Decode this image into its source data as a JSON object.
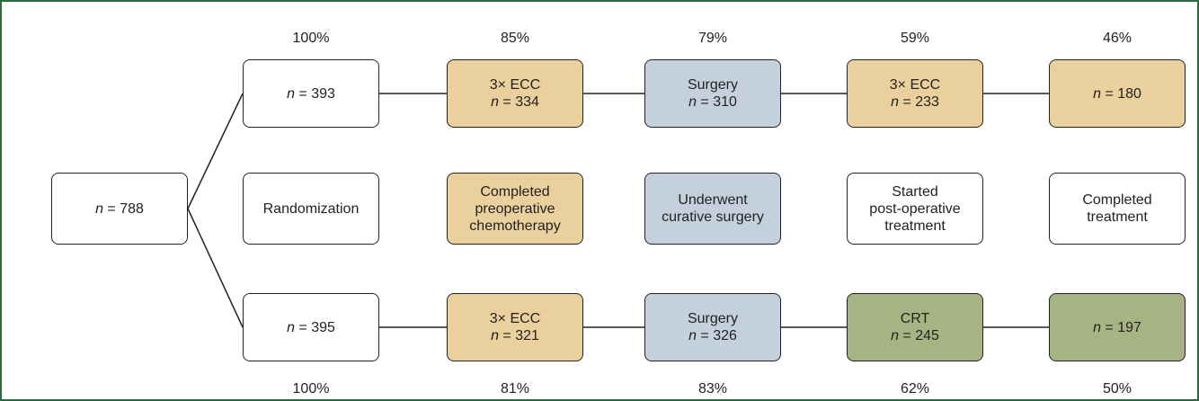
{
  "start": {
    "count": "n = 788"
  },
  "stages": [
    [
      "Randomization"
    ],
    [
      "Completed",
      "preoperative",
      "chemotherapy"
    ],
    [
      "Underwent",
      "curative surgery"
    ],
    [
      "Started",
      "post-operative",
      "treatment"
    ],
    [
      "Completed",
      "treatment"
    ]
  ],
  "arms": [
    {
      "percents": [
        "100%",
        "85%",
        "79%",
        "59%",
        "46%"
      ],
      "boxes": [
        {
          "count": "n = 393"
        },
        {
          "treatment": "3× ECC",
          "count": "n = 334"
        },
        {
          "treatment": "Surgery",
          "count": "n = 310"
        },
        {
          "treatment": "3× ECC",
          "count": "n = 233"
        },
        {
          "count": "n = 180"
        }
      ]
    },
    {
      "percents": [
        "100%",
        "81%",
        "83%",
        "62%",
        "50%"
      ],
      "boxes": [
        {
          "count": "n = 395"
        },
        {
          "treatment": "3× ECC",
          "count": "n = 321"
        },
        {
          "treatment": "Surgery",
          "count": "n = 326"
        },
        {
          "treatment": "CRT",
          "count": "n = 245"
        },
        {
          "count": "n = 197"
        }
      ]
    }
  ]
}
